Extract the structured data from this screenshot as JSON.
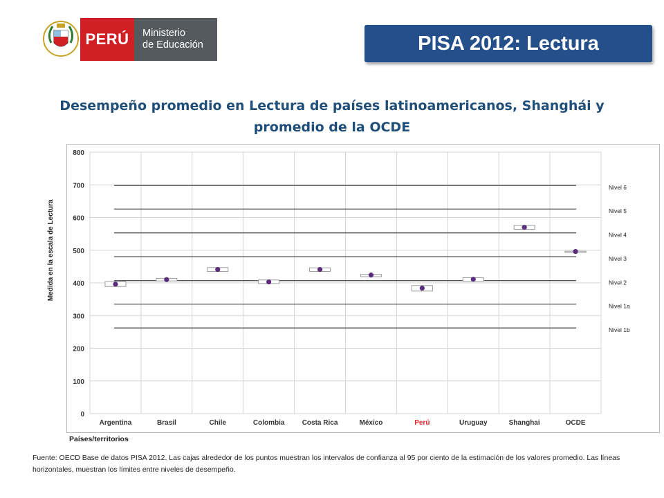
{
  "brand": {
    "peru_label": "PERÚ",
    "ministry_line1": "Ministerio",
    "ministry_line2": "de Educación"
  },
  "slide_title": "PISA 2012: Lectura",
  "chart_title": "Desempeño promedio en Lectura de países latinoamericanos, Shanghái y promedio de la OCDE",
  "footnote": "Fuente: OECD Base de datos PISA 2012. Las cajas alrededor de los puntos muestran los intervalos de confianza al 95 por ciento de la estimación de los valores promedio. Las líneas horizontales, muestran los límites entre niveles de desempeño.",
  "colors": {
    "title_box": "#244f8a",
    "chart_title": "#1f4e79",
    "point": "#5b2d7e",
    "highlight_label": "#e8262b",
    "level_line": "#555555"
  },
  "chart_data": {
    "type": "scatter",
    "ylabel": "Medida en la escala de Lectura",
    "xlabel": "Países/territorios",
    "ylim": [
      0,
      800
    ],
    "yticks": [
      "0",
      "100",
      "200",
      "300",
      "400",
      "500",
      "600",
      "700",
      "800"
    ],
    "grid": true,
    "categories": [
      "Argentina",
      "Brasil",
      "Chile",
      "Colombia",
      "Costa Rica",
      "México",
      "Perú",
      "Uruguay",
      "Shanghai",
      "OCDE"
    ],
    "highlight_category": "Perú",
    "values": [
      396,
      410,
      441,
      403,
      441,
      424,
      384,
      411,
      570,
      496
    ],
    "ci_low": [
      389,
      406,
      435,
      398,
      435,
      419,
      375,
      405,
      564,
      495
    ],
    "ci_high": [
      404,
      414,
      447,
      409,
      446,
      426,
      392,
      416,
      576,
      497
    ],
    "levels": [
      {
        "name": "Nivel 6",
        "boundary": 698
      },
      {
        "name": "Nivel 5",
        "boundary": 626
      },
      {
        "name": "Nivel 4",
        "boundary": 553
      },
      {
        "name": "Nivel 3",
        "boundary": 480
      },
      {
        "name": "Nivel 2",
        "boundary": 407
      },
      {
        "name": "Nivel 1a",
        "boundary": 335
      },
      {
        "name": "Nivel 1b",
        "boundary": 262
      }
    ]
  }
}
